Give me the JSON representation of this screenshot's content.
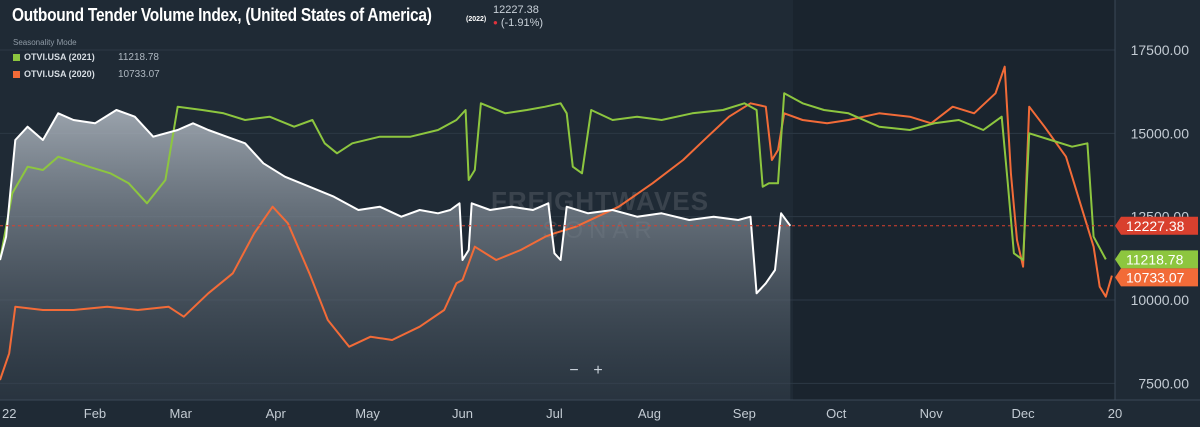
{
  "title": "Outbound Tender Volume Index, (United States of America)",
  "title_year": "(2022)",
  "current_value": "12227.38",
  "current_change": "(-1.91%)",
  "seasonality_label": "Seasonality Mode",
  "legend": [
    {
      "name": "OTVI.USA (2021)",
      "value": "11218.78",
      "color": "#8dc63f"
    },
    {
      "name": "OTVI.USA (2020)",
      "value": "10733.07",
      "color": "#f26b38"
    }
  ],
  "watermark": {
    "top": "FREIGHTWAVES",
    "bottom": "SONAR"
  },
  "zoom": {
    "minus": "−",
    "plus": "+"
  },
  "chart_data": {
    "type": "line",
    "x_axis": {
      "range": [
        "2022-01-01",
        "2022-12-31"
      ],
      "tick_labels": [
        "22",
        "Feb",
        "Mar",
        "Apr",
        "May",
        "Jun",
        "Jul",
        "Aug",
        "Sep",
        "Oct",
        "Nov",
        "Dec",
        "20"
      ]
    },
    "y_axis": {
      "position": "right",
      "ylim": [
        7000,
        19000
      ],
      "ticks": [
        7500,
        10000,
        12500,
        15000,
        17500
      ],
      "tick_labels": [
        "7500.00",
        "10000.00",
        "12500.00",
        "15000.00",
        "17500.00"
      ]
    },
    "reference_line": {
      "value": 12227.38,
      "label": "12227.38",
      "style": "dashed",
      "color": "#d9402e"
    },
    "end_labels": [
      {
        "value": 12227.38,
        "label": "12227.38",
        "color": "#d9402e"
      },
      {
        "value": 11218.78,
        "label": "11218.78",
        "color": "#8dc63f"
      },
      {
        "value": 10733.07,
        "label": "10733.07",
        "color": "#f26b38"
      }
    ],
    "colors": {
      "current": "#ffffff",
      "area": "#9aa3ad",
      "s2021": "#8dc63f",
      "s2020": "#f26b38"
    },
    "series": [
      {
        "key": "current",
        "style": "area",
        "points": [
          [
            "2022-01-01",
            11200
          ],
          [
            "2022-01-03",
            11900
          ],
          [
            "2022-01-06",
            14800
          ],
          [
            "2022-01-10",
            15200
          ],
          [
            "2022-01-15",
            14800
          ],
          [
            "2022-01-20",
            15600
          ],
          [
            "2022-01-25",
            15400
          ],
          [
            "2022-02-01",
            15300
          ],
          [
            "2022-02-08",
            15700
          ],
          [
            "2022-02-14",
            15500
          ],
          [
            "2022-02-20",
            14900
          ],
          [
            "2022-02-28",
            15100
          ],
          [
            "2022-03-05",
            15300
          ],
          [
            "2022-03-10",
            15100
          ],
          [
            "2022-03-16",
            14900
          ],
          [
            "2022-03-22",
            14700
          ],
          [
            "2022-03-28",
            14100
          ],
          [
            "2022-04-04",
            13700
          ],
          [
            "2022-04-12",
            13400
          ],
          [
            "2022-04-20",
            13100
          ],
          [
            "2022-04-28",
            12700
          ],
          [
            "2022-05-05",
            12800
          ],
          [
            "2022-05-12",
            12500
          ],
          [
            "2022-05-18",
            12700
          ],
          [
            "2022-05-24",
            12600
          ],
          [
            "2022-05-28",
            12700
          ],
          [
            "2022-05-31",
            12900
          ],
          [
            "2022-06-01",
            11200
          ],
          [
            "2022-06-03",
            11500
          ],
          [
            "2022-06-04",
            12900
          ],
          [
            "2022-06-10",
            12700
          ],
          [
            "2022-06-17",
            12800
          ],
          [
            "2022-06-24",
            12700
          ],
          [
            "2022-06-29",
            12900
          ],
          [
            "2022-07-01",
            11400
          ],
          [
            "2022-07-03",
            11200
          ],
          [
            "2022-07-05",
            12800
          ],
          [
            "2022-07-12",
            12600
          ],
          [
            "2022-07-20",
            12700
          ],
          [
            "2022-07-28",
            12500
          ],
          [
            "2022-08-05",
            12600
          ],
          [
            "2022-08-14",
            12400
          ],
          [
            "2022-08-22",
            12500
          ],
          [
            "2022-08-30",
            12400
          ],
          [
            "2022-09-03",
            12500
          ],
          [
            "2022-09-05",
            10200
          ],
          [
            "2022-09-08",
            10500
          ],
          [
            "2022-09-11",
            10900
          ],
          [
            "2022-09-13",
            12600
          ],
          [
            "2022-09-16",
            12227.38
          ]
        ]
      },
      {
        "key": "s2021",
        "style": "line",
        "points": [
          [
            "2022-01-01",
            11200
          ],
          [
            "2022-01-05",
            13200
          ],
          [
            "2022-01-10",
            14000
          ],
          [
            "2022-01-15",
            13900
          ],
          [
            "2022-01-20",
            14300
          ],
          [
            "2022-01-30",
            14000
          ],
          [
            "2022-02-06",
            13800
          ],
          [
            "2022-02-12",
            13500
          ],
          [
            "2022-02-18",
            12900
          ],
          [
            "2022-02-24",
            13600
          ],
          [
            "2022-02-28",
            15800
          ],
          [
            "2022-03-08",
            15700
          ],
          [
            "2022-03-15",
            15600
          ],
          [
            "2022-03-22",
            15400
          ],
          [
            "2022-03-30",
            15500
          ],
          [
            "2022-04-07",
            15200
          ],
          [
            "2022-04-13",
            15400
          ],
          [
            "2022-04-17",
            14700
          ],
          [
            "2022-04-21",
            14400
          ],
          [
            "2022-04-26",
            14700
          ],
          [
            "2022-05-05",
            14900
          ],
          [
            "2022-05-15",
            14900
          ],
          [
            "2022-05-24",
            15100
          ],
          [
            "2022-05-30",
            15400
          ],
          [
            "2022-06-02",
            15700
          ],
          [
            "2022-06-03",
            13600
          ],
          [
            "2022-06-05",
            13900
          ],
          [
            "2022-06-07",
            15900
          ],
          [
            "2022-06-15",
            15600
          ],
          [
            "2022-06-22",
            15700
          ],
          [
            "2022-06-28",
            15800
          ],
          [
            "2022-07-03",
            15900
          ],
          [
            "2022-07-05",
            15600
          ],
          [
            "2022-07-07",
            14000
          ],
          [
            "2022-07-10",
            13800
          ],
          [
            "2022-07-13",
            15700
          ],
          [
            "2022-07-20",
            15400
          ],
          [
            "2022-07-28",
            15500
          ],
          [
            "2022-08-05",
            15400
          ],
          [
            "2022-08-15",
            15600
          ],
          [
            "2022-08-25",
            15700
          ],
          [
            "2022-09-01",
            15900
          ],
          [
            "2022-09-05",
            15700
          ],
          [
            "2022-09-07",
            13400
          ],
          [
            "2022-09-09",
            13500
          ],
          [
            "2022-09-12",
            13500
          ],
          [
            "2022-09-14",
            16200
          ],
          [
            "2022-09-20",
            15900
          ],
          [
            "2022-09-27",
            15700
          ],
          [
            "2022-10-05",
            15600
          ],
          [
            "2022-10-15",
            15200
          ],
          [
            "2022-10-25",
            15100
          ],
          [
            "2022-11-02",
            15300
          ],
          [
            "2022-11-10",
            15400
          ],
          [
            "2022-11-18",
            15100
          ],
          [
            "2022-11-24",
            15500
          ],
          [
            "2022-11-26",
            13500
          ],
          [
            "2022-11-28",
            11400
          ],
          [
            "2022-12-01",
            11200
          ],
          [
            "2022-12-03",
            15000
          ],
          [
            "2022-12-10",
            14800
          ],
          [
            "2022-12-17",
            14600
          ],
          [
            "2022-12-22",
            14700
          ],
          [
            "2022-12-24",
            11900
          ],
          [
            "2022-12-28",
            11218.78
          ]
        ]
      },
      {
        "key": "s2020",
        "style": "line",
        "points": [
          [
            "2022-01-01",
            7600
          ],
          [
            "2022-01-04",
            8400
          ],
          [
            "2022-01-06",
            9800
          ],
          [
            "2022-01-15",
            9700
          ],
          [
            "2022-01-25",
            9700
          ],
          [
            "2022-02-05",
            9800
          ],
          [
            "2022-02-15",
            9700
          ],
          [
            "2022-02-25",
            9800
          ],
          [
            "2022-03-02",
            9500
          ],
          [
            "2022-03-10",
            10200
          ],
          [
            "2022-03-18",
            10800
          ],
          [
            "2022-03-25",
            12000
          ],
          [
            "2022-03-31",
            12800
          ],
          [
            "2022-04-05",
            12300
          ],
          [
            "2022-04-12",
            10800
          ],
          [
            "2022-04-18",
            9400
          ],
          [
            "2022-04-25",
            8600
          ],
          [
            "2022-05-02",
            8900
          ],
          [
            "2022-05-09",
            8800
          ],
          [
            "2022-05-18",
            9200
          ],
          [
            "2022-05-26",
            9700
          ],
          [
            "2022-05-30",
            10500
          ],
          [
            "2022-06-01",
            10600
          ],
          [
            "2022-06-03",
            11100
          ],
          [
            "2022-06-05",
            11600
          ],
          [
            "2022-06-12",
            11200
          ],
          [
            "2022-06-20",
            11500
          ],
          [
            "2022-06-28",
            11900
          ],
          [
            "2022-07-01",
            12000
          ],
          [
            "2022-07-08",
            12200
          ],
          [
            "2022-07-15",
            12500
          ],
          [
            "2022-07-22",
            12800
          ],
          [
            "2022-08-02",
            13500
          ],
          [
            "2022-08-12",
            14200
          ],
          [
            "2022-08-20",
            14900
          ],
          [
            "2022-08-27",
            15500
          ],
          [
            "2022-09-03",
            15900
          ],
          [
            "2022-09-08",
            15800
          ],
          [
            "2022-09-10",
            14200
          ],
          [
            "2022-09-12",
            14500
          ],
          [
            "2022-09-14",
            15600
          ],
          [
            "2022-09-20",
            15400
          ],
          [
            "2022-09-28",
            15300
          ],
          [
            "2022-10-05",
            15400
          ],
          [
            "2022-10-15",
            15600
          ],
          [
            "2022-10-25",
            15500
          ],
          [
            "2022-11-01",
            15300
          ],
          [
            "2022-11-08",
            15800
          ],
          [
            "2022-11-15",
            15600
          ],
          [
            "2022-11-22",
            16200
          ],
          [
            "2022-11-25",
            17000
          ],
          [
            "2022-11-27",
            13800
          ],
          [
            "2022-11-29",
            11800
          ],
          [
            "2022-12-01",
            11000
          ],
          [
            "2022-12-03",
            15800
          ],
          [
            "2022-12-08",
            15200
          ],
          [
            "2022-12-15",
            14300
          ],
          [
            "2022-12-20",
            12800
          ],
          [
            "2022-12-24",
            11600
          ],
          [
            "2022-12-26",
            10400
          ],
          [
            "2022-12-28",
            10100
          ],
          [
            "2022-12-30",
            10733.07
          ]
        ]
      }
    ]
  }
}
